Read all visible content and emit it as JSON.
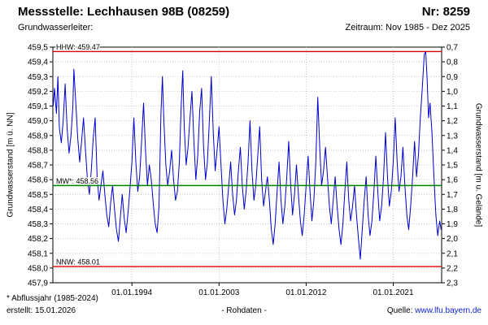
{
  "header": {
    "title": "Messstelle: Lechhausen 98B (08259)",
    "number": "Nr: 8259",
    "aquifer_label": "Grundwasserleiter:",
    "period": "Zeitraum: Nov 1985 - Dez 2025"
  },
  "footer": {
    "note": "* Abflussjahr (1985-2024)",
    "created": "erstellt: 15.01.2026",
    "center": "- Rohdaten -",
    "source_label": "Quelle:",
    "source_link": "www.lfu.bayern.de"
  },
  "colors": {
    "series": "#0000cc",
    "reference_red": "#e00000",
    "reference_green": "#008000",
    "grid": "#c8c8c8",
    "link": "#0a1fd4"
  },
  "chart_data": {
    "type": "line",
    "title": "Messstelle: Lechhausen 98B (08259)",
    "ylabel_left": "Grundwasserstand [m ü. NN]",
    "ylabel_right": "Grundwasserstand [m u. Gelände]",
    "ylim_left": [
      457.9,
      459.5
    ],
    "ylim_right": [
      2.3,
      0.7
    ],
    "y_ticks_left": [
      "459,5",
      "459,4",
      "459,3",
      "459,2",
      "459,1",
      "459,0",
      "458,9",
      "458,8",
      "458,7",
      "458,6",
      "458,5",
      "458,4",
      "458,3",
      "458,2",
      "458,1",
      "458,0",
      "457,9"
    ],
    "y_ticks_right": [
      "0,7",
      "0,8",
      "0,9",
      "1,0",
      "1,1",
      "1,2",
      "1,3",
      "1,4",
      "1,5",
      "1,6",
      "1,7",
      "1,8",
      "1,9",
      "2,0",
      "2,1",
      "2,2",
      "2,3"
    ],
    "x_range": [
      1985.83,
      2026.0
    ],
    "x_ticks": [
      {
        "t": 1994.0,
        "label": "01.01.1994"
      },
      {
        "t": 2003.0,
        "label": "01.01.2003"
      },
      {
        "t": 2012.0,
        "label": "01.01.2012"
      },
      {
        "t": 2021.0,
        "label": "01.01.2021"
      }
    ],
    "grid": true,
    "reference_lines": [
      {
        "name": "HHW",
        "label": "HHW: 459.47",
        "value": 459.47,
        "color": "#e00000"
      },
      {
        "name": "MW",
        "label": "MW*: 458.56",
        "value": 458.56,
        "color": "#008000"
      },
      {
        "name": "NNW",
        "label": "NNW: 458.01",
        "value": 458.01,
        "color": "#e00000"
      }
    ],
    "series": [
      {
        "name": "Rohdaten",
        "color": "#0000cc",
        "points": [
          [
            1985.87,
            459.1
          ],
          [
            1986.0,
            459.22
          ],
          [
            1986.2,
            459.05
          ],
          [
            1986.35,
            459.3
          ],
          [
            1986.5,
            458.95
          ],
          [
            1986.7,
            458.85
          ],
          [
            1986.9,
            459.0
          ],
          [
            1987.1,
            459.25
          ],
          [
            1987.3,
            458.95
          ],
          [
            1987.5,
            458.78
          ],
          [
            1987.7,
            458.9
          ],
          [
            1987.9,
            459.1
          ],
          [
            1988.0,
            459.35
          ],
          [
            1988.2,
            459.12
          ],
          [
            1988.4,
            458.88
          ],
          [
            1988.6,
            458.72
          ],
          [
            1988.8,
            458.86
          ],
          [
            1989.0,
            459.02
          ],
          [
            1989.2,
            458.8
          ],
          [
            1989.4,
            458.6
          ],
          [
            1989.6,
            458.5
          ],
          [
            1989.8,
            458.66
          ],
          [
            1990.0,
            458.88
          ],
          [
            1990.2,
            459.02
          ],
          [
            1990.4,
            458.62
          ],
          [
            1990.6,
            458.46
          ],
          [
            1990.8,
            458.56
          ],
          [
            1991.0,
            458.66
          ],
          [
            1991.2,
            458.5
          ],
          [
            1991.4,
            458.36
          ],
          [
            1991.6,
            458.28
          ],
          [
            1991.8,
            458.44
          ],
          [
            1992.0,
            458.56
          ],
          [
            1992.2,
            458.4
          ],
          [
            1992.4,
            458.26
          ],
          [
            1992.6,
            458.18
          ],
          [
            1992.8,
            458.34
          ],
          [
            1993.0,
            458.5
          ],
          [
            1993.2,
            458.34
          ],
          [
            1993.4,
            458.24
          ],
          [
            1993.6,
            458.38
          ],
          [
            1993.8,
            458.54
          ],
          [
            1994.0,
            458.72
          ],
          [
            1994.2,
            459.02
          ],
          [
            1994.4,
            458.72
          ],
          [
            1994.6,
            458.52
          ],
          [
            1994.8,
            458.62
          ],
          [
            1995.0,
            458.86
          ],
          [
            1995.2,
            459.12
          ],
          [
            1995.4,
            458.8
          ],
          [
            1995.6,
            458.56
          ],
          [
            1995.8,
            458.7
          ],
          [
            1996.0,
            458.6
          ],
          [
            1996.2,
            458.44
          ],
          [
            1996.4,
            458.3
          ],
          [
            1996.6,
            458.24
          ],
          [
            1996.8,
            458.42
          ],
          [
            1997.0,
            459.05
          ],
          [
            1997.15,
            459.3
          ],
          [
            1997.3,
            459.0
          ],
          [
            1997.5,
            458.7
          ],
          [
            1997.7,
            458.56
          ],
          [
            1997.9,
            458.66
          ],
          [
            1998.1,
            458.8
          ],
          [
            1998.3,
            458.6
          ],
          [
            1998.5,
            458.46
          ],
          [
            1998.7,
            458.52
          ],
          [
            1998.9,
            458.72
          ],
          [
            1999.1,
            459.12
          ],
          [
            1999.25,
            459.34
          ],
          [
            1999.4,
            458.96
          ],
          [
            1999.6,
            458.7
          ],
          [
            1999.8,
            458.82
          ],
          [
            2000.0,
            459.02
          ],
          [
            2000.2,
            459.2
          ],
          [
            2000.4,
            458.86
          ],
          [
            2000.6,
            458.6
          ],
          [
            2000.8,
            458.76
          ],
          [
            2001.0,
            459.06
          ],
          [
            2001.2,
            459.22
          ],
          [
            2001.4,
            458.82
          ],
          [
            2001.6,
            458.6
          ],
          [
            2001.8,
            458.72
          ],
          [
            2002.0,
            459.0
          ],
          [
            2002.2,
            459.3
          ],
          [
            2002.4,
            458.92
          ],
          [
            2002.6,
            458.66
          ],
          [
            2002.8,
            458.8
          ],
          [
            2003.0,
            458.96
          ],
          [
            2003.2,
            458.7
          ],
          [
            2003.4,
            458.46
          ],
          [
            2003.6,
            458.3
          ],
          [
            2003.8,
            458.4
          ],
          [
            2004.0,
            458.56
          ],
          [
            2004.2,
            458.72
          ],
          [
            2004.4,
            458.5
          ],
          [
            2004.6,
            458.36
          ],
          [
            2004.8,
            458.46
          ],
          [
            2005.0,
            458.66
          ],
          [
            2005.2,
            458.82
          ],
          [
            2005.4,
            458.56
          ],
          [
            2005.6,
            458.4
          ],
          [
            2005.8,
            458.52
          ],
          [
            2006.0,
            458.72
          ],
          [
            2006.2,
            459.0
          ],
          [
            2006.4,
            458.66
          ],
          [
            2006.6,
            458.46
          ],
          [
            2006.8,
            458.56
          ],
          [
            2007.0,
            458.76
          ],
          [
            2007.2,
            458.96
          ],
          [
            2007.4,
            458.6
          ],
          [
            2007.6,
            458.42
          ],
          [
            2007.8,
            458.52
          ],
          [
            2008.0,
            458.62
          ],
          [
            2008.2,
            458.46
          ],
          [
            2008.4,
            458.26
          ],
          [
            2008.6,
            458.16
          ],
          [
            2008.8,
            458.3
          ],
          [
            2009.0,
            458.52
          ],
          [
            2009.2,
            458.72
          ],
          [
            2009.4,
            458.46
          ],
          [
            2009.6,
            458.3
          ],
          [
            2009.8,
            458.42
          ],
          [
            2010.0,
            458.62
          ],
          [
            2010.2,
            458.86
          ],
          [
            2010.4,
            458.56
          ],
          [
            2010.6,
            458.36
          ],
          [
            2010.8,
            458.5
          ],
          [
            2011.0,
            458.7
          ],
          [
            2011.2,
            458.5
          ],
          [
            2011.4,
            458.32
          ],
          [
            2011.6,
            458.22
          ],
          [
            2011.8,
            458.36
          ],
          [
            2012.0,
            458.56
          ],
          [
            2012.2,
            458.76
          ],
          [
            2012.4,
            458.52
          ],
          [
            2012.6,
            458.32
          ],
          [
            2012.8,
            458.46
          ],
          [
            2013.0,
            458.72
          ],
          [
            2013.2,
            459.16
          ],
          [
            2013.4,
            458.82
          ],
          [
            2013.6,
            458.56
          ],
          [
            2013.8,
            458.66
          ],
          [
            2014.0,
            458.82
          ],
          [
            2014.2,
            458.62
          ],
          [
            2014.4,
            458.42
          ],
          [
            2014.6,
            458.3
          ],
          [
            2014.8,
            458.46
          ],
          [
            2015.0,
            458.62
          ],
          [
            2015.2,
            458.42
          ],
          [
            2015.4,
            458.26
          ],
          [
            2015.6,
            458.16
          ],
          [
            2015.8,
            458.3
          ],
          [
            2016.0,
            458.52
          ],
          [
            2016.2,
            458.72
          ],
          [
            2016.4,
            458.46
          ],
          [
            2016.6,
            458.32
          ],
          [
            2016.8,
            458.42
          ],
          [
            2017.0,
            458.56
          ],
          [
            2017.2,
            458.36
          ],
          [
            2017.4,
            458.2
          ],
          [
            2017.6,
            458.06
          ],
          [
            2017.8,
            458.26
          ],
          [
            2018.0,
            458.46
          ],
          [
            2018.2,
            458.62
          ],
          [
            2018.4,
            458.36
          ],
          [
            2018.6,
            458.22
          ],
          [
            2018.8,
            458.32
          ],
          [
            2019.0,
            458.52
          ],
          [
            2019.2,
            458.76
          ],
          [
            2019.4,
            458.52
          ],
          [
            2019.6,
            458.32
          ],
          [
            2019.8,
            458.42
          ],
          [
            2020.0,
            458.62
          ],
          [
            2020.2,
            458.92
          ],
          [
            2020.4,
            458.62
          ],
          [
            2020.6,
            458.42
          ],
          [
            2020.8,
            458.52
          ],
          [
            2021.0,
            458.72
          ],
          [
            2021.2,
            459.02
          ],
          [
            2021.4,
            458.72
          ],
          [
            2021.6,
            458.52
          ],
          [
            2021.8,
            458.62
          ],
          [
            2022.0,
            458.82
          ],
          [
            2022.2,
            458.56
          ],
          [
            2022.4,
            458.36
          ],
          [
            2022.6,
            458.26
          ],
          [
            2022.8,
            458.42
          ],
          [
            2023.0,
            458.62
          ],
          [
            2023.2,
            458.86
          ],
          [
            2023.4,
            458.62
          ],
          [
            2023.6,
            458.76
          ],
          [
            2023.8,
            459.02
          ],
          [
            2024.0,
            459.22
          ],
          [
            2024.2,
            459.45
          ],
          [
            2024.35,
            459.47
          ],
          [
            2024.5,
            459.28
          ],
          [
            2024.65,
            459.02
          ],
          [
            2024.8,
            459.12
          ],
          [
            2025.0,
            458.92
          ],
          [
            2025.2,
            458.62
          ],
          [
            2025.4,
            458.36
          ],
          [
            2025.6,
            458.22
          ],
          [
            2025.8,
            458.32
          ],
          [
            2025.95,
            458.26
          ]
        ]
      }
    ]
  }
}
